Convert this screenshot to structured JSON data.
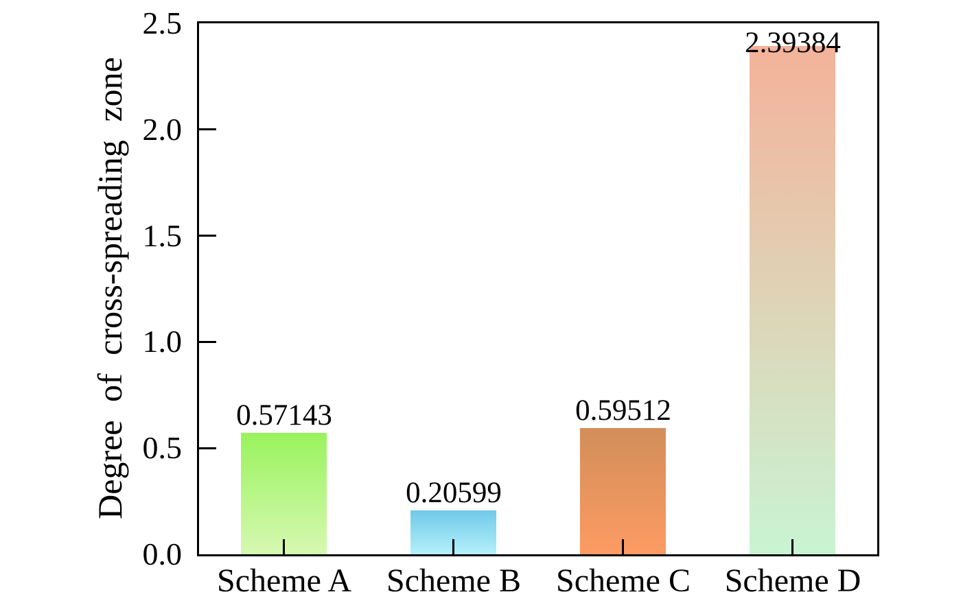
{
  "chart_data": {
    "type": "bar",
    "title": "",
    "xlabel": "",
    "ylabel": "Degree of cross-spreading zone",
    "categories": [
      "Scheme A",
      "Scheme B",
      "Scheme C",
      "Scheme D"
    ],
    "values": [
      0.57143,
      0.20599,
      0.59512,
      2.39384
    ],
    "value_labels": [
      "0.57143",
      "0.20599",
      "0.59512",
      "2.39384"
    ],
    "ylim": [
      0,
      2.5
    ],
    "yticks": [
      0.0,
      0.5,
      1.0,
      1.5,
      2.0,
      2.5
    ],
    "ytick_labels": [
      "0.0",
      "0.5",
      "1.0",
      "1.5",
      "2.0",
      "2.5"
    ],
    "grid": false,
    "legend": "none",
    "frame": "full-box",
    "tick_direction": "in",
    "axis_color": "#000000",
    "text_color": "#000000",
    "background_color": "#ffffff",
    "bar_gradients": [
      {
        "top": "#99F35C",
        "bottom": "#D6F8B2"
      },
      {
        "top": "#70C9E9",
        "bottom": "#B5F0FB"
      },
      {
        "top": "#D28E59",
        "bottom": "#FD9B63"
      },
      {
        "top": "#F4B29A",
        "bottom": "#C9F4D3"
      }
    ]
  }
}
